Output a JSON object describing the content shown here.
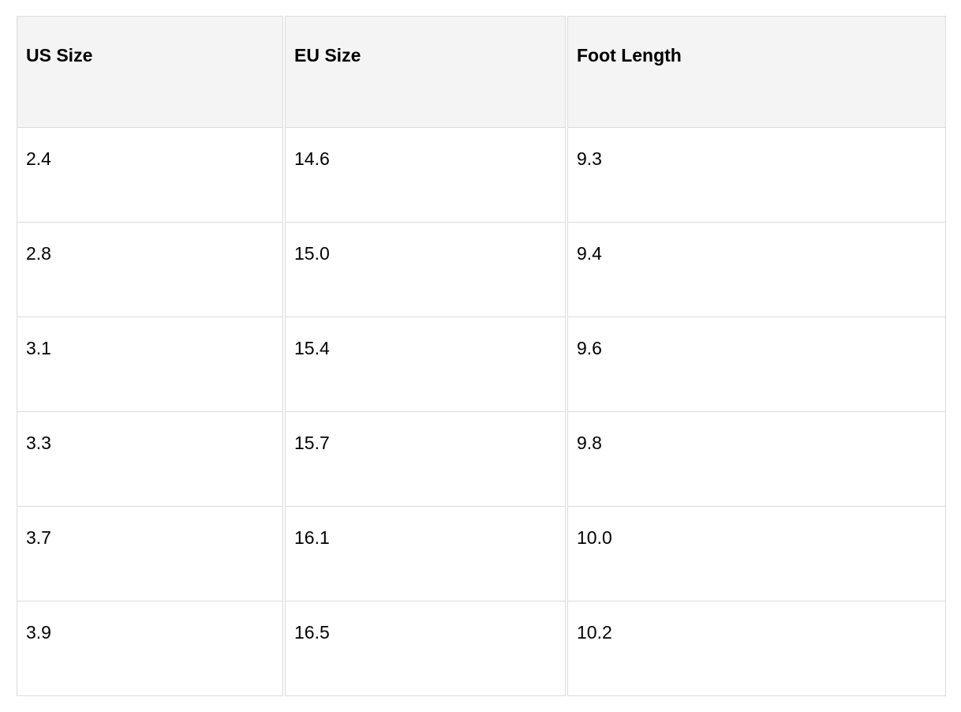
{
  "table": {
    "headers": [
      "US Size",
      "EU Size",
      "Foot Length"
    ],
    "rows": [
      [
        "2.4",
        "14.6",
        "9.3"
      ],
      [
        "2.8",
        "15.0",
        "9.4"
      ],
      [
        "3.1",
        "15.4",
        "9.6"
      ],
      [
        "3.3",
        "15.7",
        "9.8"
      ],
      [
        "3.7",
        "16.1",
        "10.0"
      ],
      [
        "3.9",
        "16.5",
        "10.2"
      ]
    ]
  }
}
